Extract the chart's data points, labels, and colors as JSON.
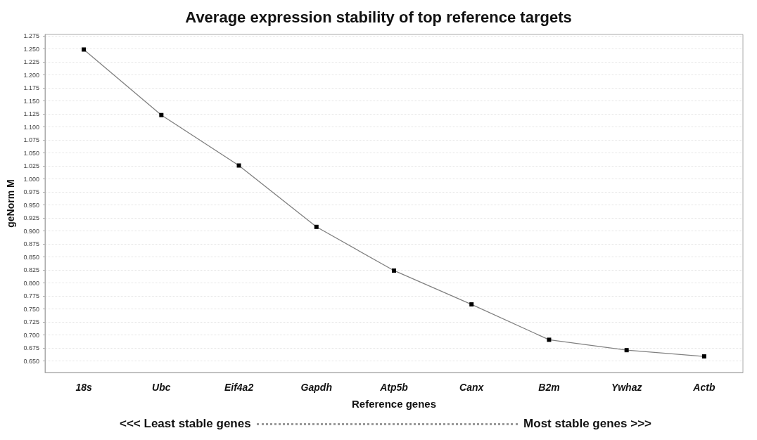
{
  "chart_data": {
    "type": "line",
    "title": "Average expression stability of top reference targets",
    "xlabel": "Reference genes",
    "ylabel": "geNorm M",
    "categories": [
      "18s",
      "Ubc",
      "Eif4a2",
      "Gapdh",
      "Atp5b",
      "Canx",
      "B2m",
      "Ywhaz",
      "Actb"
    ],
    "series": [
      {
        "color": "#808080",
        "values": [
          1.249,
          1.123,
          1.026,
          0.908,
          0.824,
          0.759,
          0.691,
          0.671,
          0.659
        ]
      }
    ],
    "ylim": [
      0.628,
      1.278
    ],
    "yticks": [
      {
        "value": 0.65,
        "label": "0.650"
      },
      {
        "value": 0.675,
        "label": "0.675"
      },
      {
        "value": 0.7,
        "label": "0.700"
      },
      {
        "value": 0.725,
        "label": "0.725"
      },
      {
        "value": 0.75,
        "label": "0.750"
      },
      {
        "value": 0.775,
        "label": "0.775"
      },
      {
        "value": 0.8,
        "label": "0.800"
      },
      {
        "value": 0.825,
        "label": "0.825"
      },
      {
        "value": 0.85,
        "label": "0.850"
      },
      {
        "value": 0.875,
        "label": "0.875"
      },
      {
        "value": 0.9,
        "label": "0.900"
      },
      {
        "value": 0.925,
        "label": "0.925"
      },
      {
        "value": 0.95,
        "label": "0.950"
      },
      {
        "value": 0.975,
        "label": "0.975"
      },
      {
        "value": 1,
        "label": "1.000"
      },
      {
        "value": 1.025,
        "label": "1.025"
      },
      {
        "value": 1.05,
        "label": "1.050"
      },
      {
        "value": 1.075,
        "label": "1.075"
      },
      {
        "value": 1.1,
        "label": "1.100"
      },
      {
        "value": 1.125,
        "label": "1.125"
      },
      {
        "value": 1.15,
        "label": "1.150"
      },
      {
        "value": 1.175,
        "label": "1.175"
      },
      {
        "value": 1.2,
        "label": "1.200"
      },
      {
        "value": 1.225,
        "label": "1.225"
      },
      {
        "value": 1.25,
        "label": "1.250"
      },
      {
        "value": 1.275,
        "label": "1.275"
      }
    ],
    "grid": "y",
    "marker": "square",
    "line_style": "solid",
    "annotations": [
      "<<< Least stable genes",
      "Most stable genes >>>"
    ]
  }
}
